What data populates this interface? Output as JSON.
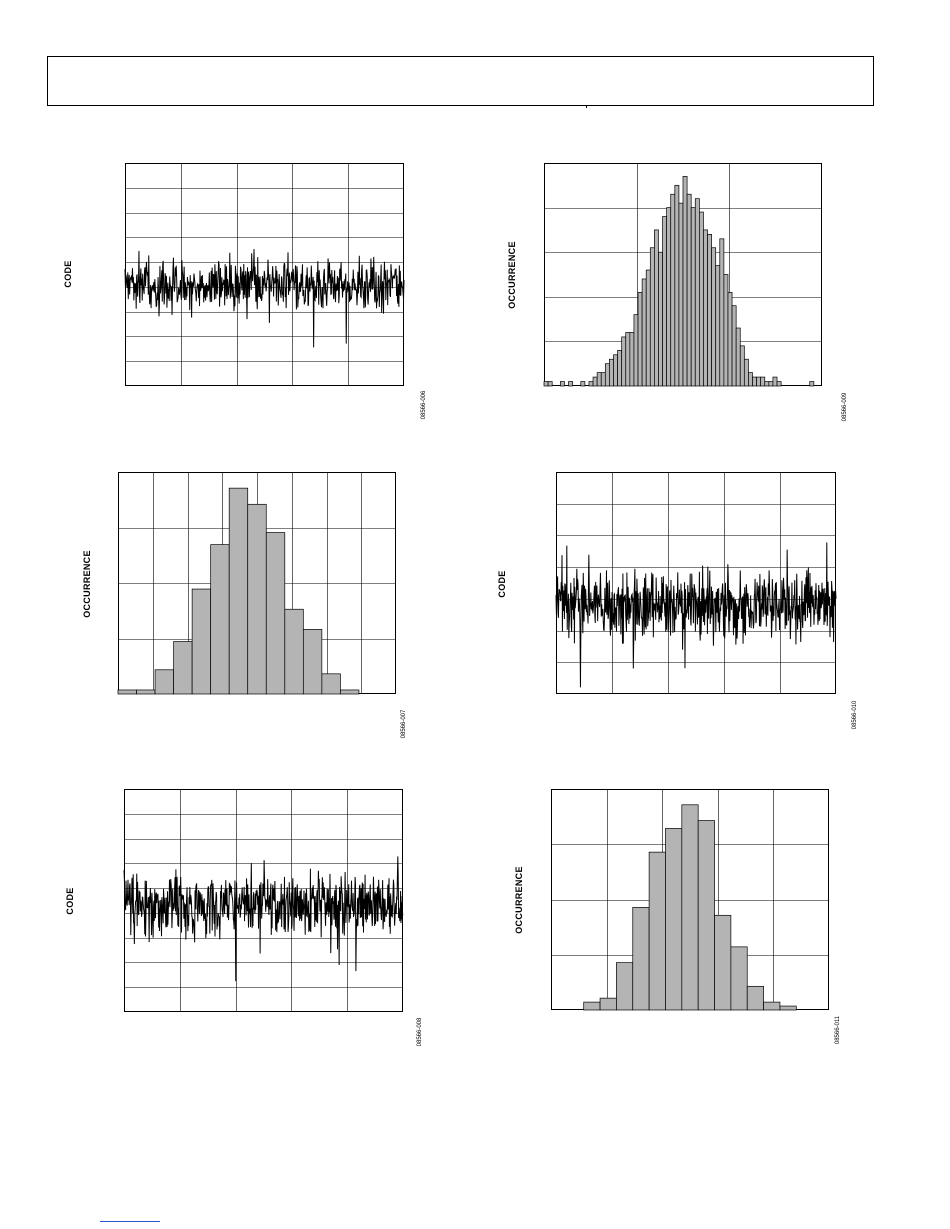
{
  "page": {
    "footer_link": ""
  },
  "chart_data": [
    {
      "id": "p1",
      "type": "line",
      "ylabel": "CODE",
      "figure_id": "08566-006",
      "grid": true,
      "grid_x": 5,
      "grid_y": 9,
      "points": 600,
      "seed": 11,
      "baseline": 0.545,
      "spread": 0.055,
      "spikes": 0.03
    },
    {
      "id": "p2",
      "type": "bar",
      "ylabel": "OCCURRENCE",
      "figure_id": "08566-009",
      "grid": true,
      "grid_x": 3,
      "grid_y": 5,
      "values": [
        1,
        1,
        0,
        0,
        1,
        0,
        1,
        0,
        0,
        1,
        0,
        1,
        2,
        3,
        3,
        5,
        6,
        7,
        8,
        11,
        12,
        12,
        16,
        21,
        24,
        26,
        31,
        35,
        30,
        38,
        40,
        43,
        45,
        41,
        47,
        43,
        40,
        42,
        39,
        35,
        34,
        31,
        27,
        33,
        25,
        21,
        18,
        13,
        9,
        6,
        3,
        2,
        2,
        2,
        1,
        1,
        2,
        1,
        0,
        0,
        0,
        0,
        0,
        0,
        0,
        1,
        0,
        0
      ],
      "ylim": [
        0,
        50
      ]
    },
    {
      "id": "p3",
      "type": "bar",
      "ylabel": "OCCURRENCE",
      "figure_id": "08566-007",
      "grid": true,
      "grid_x": 8,
      "grid_y": 4,
      "values": [
        1,
        1,
        6,
        13,
        26,
        37,
        51,
        47,
        40,
        21,
        16,
        5,
        1,
        0,
        0
      ],
      "ylim": [
        0,
        55
      ]
    },
    {
      "id": "p4",
      "type": "line",
      "ylabel": "CODE",
      "figure_id": "08566-010",
      "grid": true,
      "grid_x": 5,
      "grid_y": 7,
      "points": 700,
      "seed": 23,
      "baseline": 0.6,
      "spread": 0.07,
      "spikes": 0.05
    },
    {
      "id": "p5",
      "type": "line",
      "ylabel": "CODE",
      "figure_id": "08566-008",
      "grid": true,
      "grid_x": 5,
      "grid_y": 9,
      "points": 700,
      "seed": 37,
      "baseline": 0.52,
      "spread": 0.065,
      "spikes": 0.05
    },
    {
      "id": "p6",
      "type": "bar",
      "ylabel": "OCCURRENCE",
      "figure_id": "08566-011",
      "grid": true,
      "grid_x": 5,
      "grid_y": 4,
      "values": [
        0,
        0,
        2,
        3,
        12,
        26,
        40,
        46,
        52,
        48,
        24,
        16,
        6,
        2,
        1,
        0,
        0
      ],
      "ylim": [
        0,
        56
      ]
    }
  ]
}
